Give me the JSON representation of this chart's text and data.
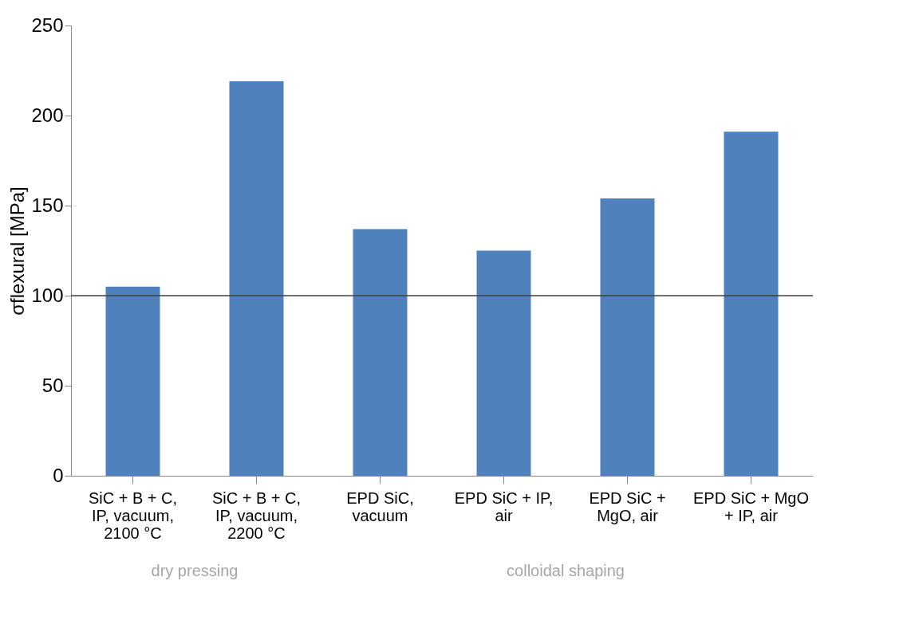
{
  "chart_data": {
    "type": "bar",
    "ylabel": "σflexural [MPa]",
    "categories": [
      "SiC + B + C, IP, vacuum, 2100 °C",
      "SiC + B + C, IP, vacuum, 2200 °C",
      "EPD SiC, vacuum",
      "EPD SiC + IP, air",
      "EPD SiC + MgO, air",
      "EPD SiC + MgO + IP, air"
    ],
    "values": [
      105,
      219,
      137,
      125,
      154,
      191
    ],
    "color": "#4f81bd",
    "ylim": [
      0,
      250
    ],
    "yticks": [
      0,
      50,
      100,
      150,
      200,
      250
    ],
    "grid": false,
    "ref_lines": [
      {
        "axis": "y",
        "value": 100,
        "color": "#404040"
      }
    ],
    "annotations": [
      "dry pressing",
      "colloidal shaping"
    ]
  }
}
